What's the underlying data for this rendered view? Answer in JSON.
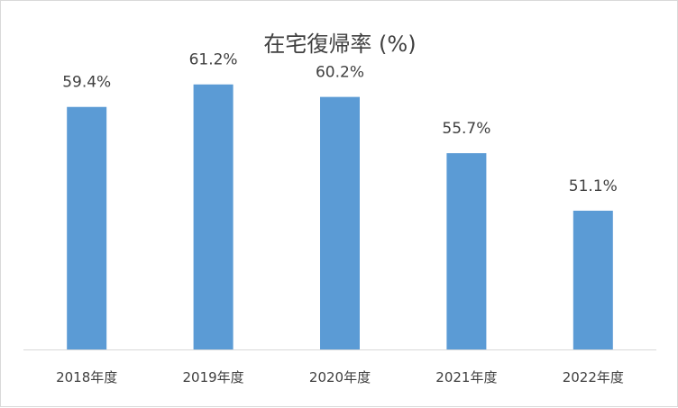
{
  "chart_data": {
    "type": "bar",
    "title": "在宅復帰率 (%)",
    "categories": [
      "2018年度",
      "2019年度",
      "2020年度",
      "2021年度",
      "2022年度"
    ],
    "values": [
      59.4,
      61.2,
      60.2,
      55.7,
      51.1
    ],
    "value_labels": [
      "59.4%",
      "61.2%",
      "60.2%",
      "55.7%",
      "51.1%"
    ],
    "xlabel": "",
    "ylabel": "",
    "ylim": [
      40,
      65
    ],
    "grid": false,
    "legend": "none",
    "colors": {
      "bar": "#5b9bd5",
      "axis": "#d9d9d9",
      "text": "#404040"
    }
  }
}
